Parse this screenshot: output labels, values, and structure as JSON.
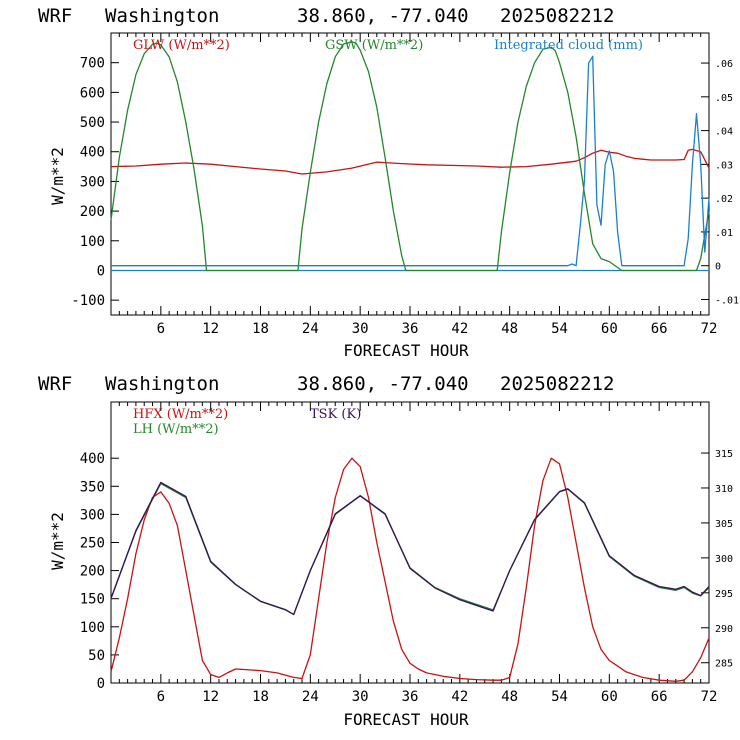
{
  "header": {
    "model": "WRF",
    "location": "Washington",
    "coords": "38.860, -77.040",
    "init": "2025082212"
  },
  "colors": {
    "red": "#cc1111",
    "green": "#22882a",
    "blue": "#1a7fd0",
    "purple": "#3a0f5a"
  },
  "chart_data": [
    {
      "type": "line",
      "xlabel": "FORECAST HOUR",
      "ylabel": "W/m**2",
      "xlim": [
        0,
        72
      ],
      "ylim": [
        -150,
        800
      ],
      "y2lim": [
        -0.0146,
        0.0689
      ],
      "xticks": [
        "6",
        "12",
        "18",
        "24",
        "30",
        "36",
        "42",
        "48",
        "54",
        "60",
        "66",
        "72"
      ],
      "yticks": [
        "-100",
        "0",
        "100",
        "200",
        "300",
        "400",
        "500",
        "600",
        "700"
      ],
      "y2ticks": [
        "-.01",
        "0",
        ".01",
        ".02",
        ".03",
        ".04",
        ".05",
        ".06"
      ],
      "series": [
        {
          "name": "GLW (W/m**2)",
          "axis": "left",
          "color": "red",
          "x": [
            0,
            3,
            6,
            9,
            12,
            15,
            18,
            21,
            23,
            26,
            29,
            32,
            35,
            38,
            41,
            44,
            47,
            50,
            53,
            56,
            57,
            58,
            59,
            60,
            61,
            62,
            63,
            64,
            65,
            66,
            67,
            68,
            69,
            69.5,
            70,
            71,
            72
          ],
          "y": [
            350,
            352,
            358,
            362,
            358,
            350,
            342,
            335,
            325,
            332,
            345,
            365,
            360,
            356,
            354,
            352,
            348,
            350,
            358,
            368,
            380,
            395,
            405,
            398,
            395,
            385,
            378,
            375,
            372,
            372,
            372,
            372,
            374,
            405,
            408,
            400,
            345
          ]
        },
        {
          "name": "GSW (W/m**2)",
          "axis": "left",
          "color": "green",
          "x": [
            0,
            1,
            2,
            3,
            4,
            5,
            5.5,
            6,
            7,
            8,
            9,
            10,
            11,
            11.5,
            22.5,
            23,
            24,
            25,
            26,
            27,
            28,
            29,
            29.5,
            30,
            31,
            32,
            33,
            34,
            35,
            35.5,
            46.5,
            47,
            48,
            49,
            50,
            51,
            52,
            53,
            53.5,
            54,
            55,
            56,
            57,
            58,
            59,
            60,
            61,
            61.5,
            69.5,
            70,
            70.5,
            71,
            71.5,
            72
          ],
          "y": [
            170,
            380,
            540,
            660,
            730,
            762,
            766,
            760,
            720,
            635,
            500,
            340,
            150,
            0,
            0,
            140,
            330,
            500,
            630,
            720,
            763,
            770,
            766,
            742,
            670,
            550,
            380,
            200,
            50,
            0,
            0,
            130,
            330,
            500,
            620,
            700,
            745,
            752,
            740,
            700,
            600,
            450,
            260,
            90,
            40,
            30,
            10,
            0,
            0,
            0,
            0,
            40,
            120,
            200
          ]
        },
        {
          "name": "Integrated cloud (mm)",
          "axis": "right",
          "color": "blue",
          "x": [
            0,
            55,
            55.5,
            56,
            56.5,
            57,
            57.5,
            58,
            58.5,
            59,
            59.5,
            60,
            60.5,
            61,
            61.5,
            62,
            69,
            69.5,
            70,
            70.5,
            71,
            71.5,
            72
          ],
          "y": [
            0,
            0,
            0.0005,
            0,
            0.012,
            0.025,
            0.06,
            0.062,
            0.018,
            0.012,
            0.03,
            0.034,
            0.028,
            0.01,
            0,
            0,
            0,
            0.008,
            0.03,
            0.045,
            0.03,
            0.004,
            0.02
          ]
        }
      ],
      "annotations": [
        {
          "text": "GLW (W/m**2)",
          "color": "red"
        },
        {
          "text": "GSW (W/m**2)",
          "color": "green"
        },
        {
          "text": "Integrated cloud (mm)",
          "color": "blue"
        }
      ]
    },
    {
      "type": "line",
      "xlabel": "FORECAST HOUR",
      "ylabel": "W/m**2",
      "xlim": [
        0,
        72
      ],
      "ylim": [
        0,
        500
      ],
      "y2lim": [
        282.1,
        322.3
      ],
      "xticks": [
        "6",
        "12",
        "18",
        "24",
        "30",
        "36",
        "42",
        "48",
        "54",
        "60",
        "66",
        "72"
      ],
      "yticks": [
        "0",
        "50",
        "100",
        "150",
        "200",
        "250",
        "300",
        "350",
        "400"
      ],
      "y2ticks": [
        "285",
        "290",
        "295",
        "300",
        "305",
        "310",
        "315"
      ],
      "series": [
        {
          "name": "HFX (W/m**2)",
          "axis": "left",
          "color": "red",
          "x": [
            0,
            1,
            2,
            3,
            4,
            5,
            6,
            7,
            8,
            9,
            10,
            11,
            12,
            13,
            14,
            15,
            16,
            18,
            20,
            22,
            23,
            24,
            25,
            26,
            27,
            28,
            29,
            30,
            31,
            32,
            33,
            34,
            35,
            36,
            37,
            38,
            40,
            42,
            44,
            46,
            47,
            48,
            49,
            50,
            51,
            52,
            53,
            54,
            55,
            56,
            57,
            58,
            59,
            60,
            61,
            62,
            64,
            66,
            68,
            69,
            70,
            71,
            72
          ],
          "y": [
            20,
            80,
            150,
            230,
            290,
            330,
            340,
            320,
            280,
            200,
            120,
            40,
            15,
            10,
            18,
            25,
            24,
            22,
            18,
            10,
            8,
            50,
            150,
            250,
            330,
            380,
            400,
            385,
            330,
            250,
            180,
            110,
            60,
            35,
            25,
            18,
            12,
            8,
            6,
            5,
            5,
            10,
            70,
            170,
            280,
            360,
            400,
            390,
            330,
            250,
            170,
            100,
            60,
            40,
            30,
            20,
            10,
            5,
            3,
            5,
            20,
            45,
            80
          ]
        },
        {
          "name": "LH (W/m**2)",
          "axis": "left",
          "color": "green",
          "x": [
            0,
            3,
            6,
            9,
            12,
            15,
            18,
            21,
            22,
            24,
            27,
            30,
            33,
            36,
            39,
            42,
            45,
            46,
            48,
            51,
            54,
            55,
            57,
            60,
            63,
            66,
            68,
            69,
            70,
            71,
            72
          ],
          "y": [
            150,
            270,
            355,
            330,
            215,
            175,
            145,
            130,
            122,
            200,
            300,
            333,
            300,
            205,
            170,
            150,
            135,
            130,
            200,
            290,
            340,
            345,
            320,
            225,
            190,
            170,
            165,
            170,
            160,
            155,
            170
          ]
        },
        {
          "name": "TSK (K)",
          "axis": "right",
          "color": "purple",
          "x": [
            0,
            3,
            6,
            9,
            12,
            15,
            18,
            21,
            22,
            24,
            27,
            30,
            33,
            36,
            39,
            42,
            45,
            46,
            48,
            51,
            54,
            55,
            57,
            60,
            63,
            66,
            68,
            69,
            70,
            71,
            72
          ],
          "y": [
            294.2,
            303.9,
            310.8,
            308.8,
            299.5,
            296.2,
            293.8,
            292.6,
            291.9,
            298.2,
            306.3,
            308.9,
            306.3,
            298.5,
            295.7,
            294.0,
            292.8,
            292.4,
            298.2,
            305.5,
            309.5,
            309.9,
            307.9,
            300.3,
            297.5,
            295.9,
            295.5,
            295.9,
            295.1,
            294.6,
            295.9
          ]
        }
      ],
      "annotations": [
        {
          "text": "HFX (W/m**2)",
          "color": "red"
        },
        {
          "text": "LH  (W/m**2)",
          "color": "green"
        },
        {
          "text": "TSK (K)",
          "color": "purple"
        }
      ]
    }
  ]
}
